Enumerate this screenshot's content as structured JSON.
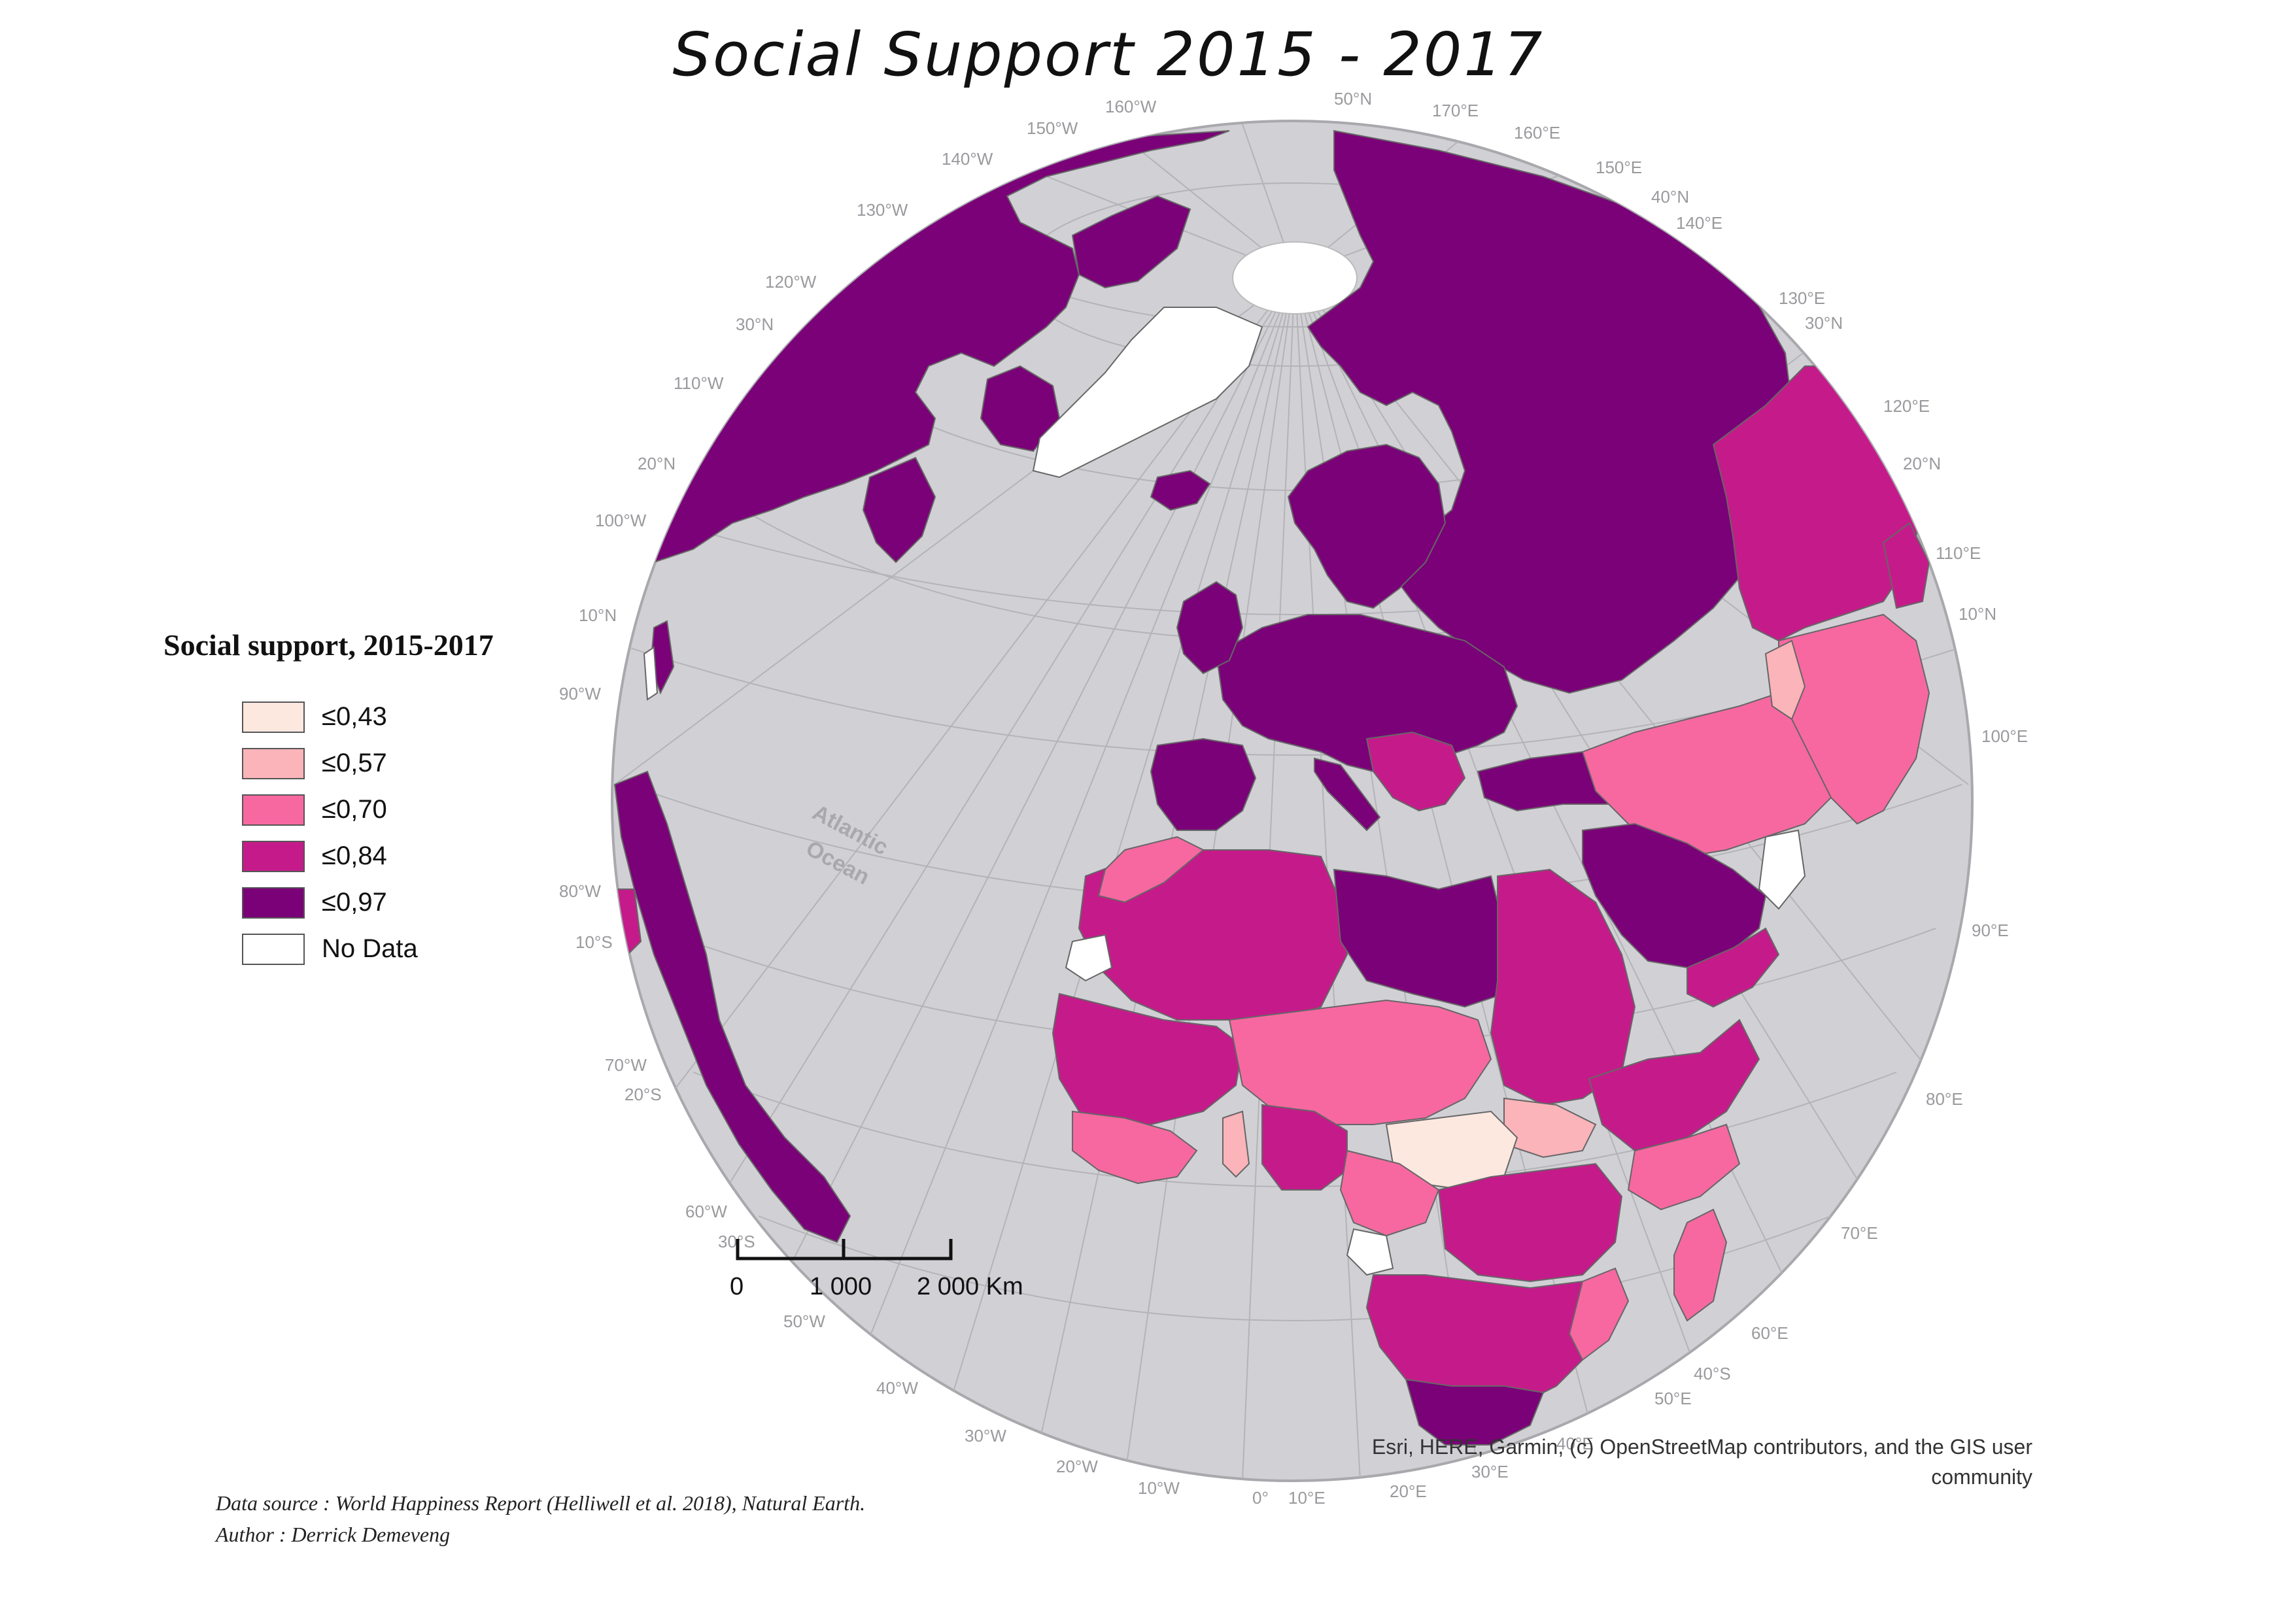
{
  "title": "Social Support 2015 - 2017",
  "colors": {
    "class_1": "#fde8e0",
    "class_2": "#fbb4b9",
    "class_3": "#f768a1",
    "class_4": "#c51b8a",
    "class_5": "#7a0177",
    "no_data": "#ffffff",
    "ocean": "#d0d0d5",
    "graticule": "#b4b4b8",
    "borders": "#666666"
  },
  "legend": {
    "title": "Social support, 2015-2017",
    "items": [
      {
        "label": "≤0,43",
        "color": "#fde8e0"
      },
      {
        "label": "≤0,57",
        "color": "#fbb4b9"
      },
      {
        "label": "≤0,70",
        "color": "#f768a1"
      },
      {
        "label": "≤0,84",
        "color": "#c51b8a"
      },
      {
        "label": "≤0,97",
        "color": "#7a0177"
      },
      {
        "label": "No Data",
        "color": "#ffffff"
      }
    ]
  },
  "graticule_labels": [
    "50°N",
    "170°E",
    "160°W",
    "150°W",
    "160°E",
    "140°W",
    "150°E",
    "40°N",
    "140°E",
    "130°W",
    "120°W",
    "130°E",
    "30°N",
    "30°N",
    "110°W",
    "120°E",
    "20°N",
    "20°N",
    "100°W",
    "110°E",
    "10°N",
    "10°N",
    "90°W",
    "100°E",
    "80°W",
    "90°E",
    "10°S",
    "70°W",
    "20°S",
    "80°E",
    "60°W",
    "30°S",
    "70°E",
    "50°W",
    "60°E",
    "40°S",
    "40°W",
    "50°E",
    "30°W",
    "40°E",
    "20°W",
    "30°E",
    "10°W",
    "0°",
    "10°E",
    "20°E"
  ],
  "ocean_label": [
    "Atlantic",
    "Ocean"
  ],
  "scale_bar": {
    "labels": [
      "0",
      "1 000",
      "2 000 Km"
    ]
  },
  "credits": "Esri, HERE, Garmin, (c) OpenStreetMap contributors, and the GIS user community",
  "source": {
    "line1": "Data source : World Happiness Report (Helliwell et al. 2018), Natural Earth.",
    "line2": "Author : Derrick Demeveng"
  }
}
